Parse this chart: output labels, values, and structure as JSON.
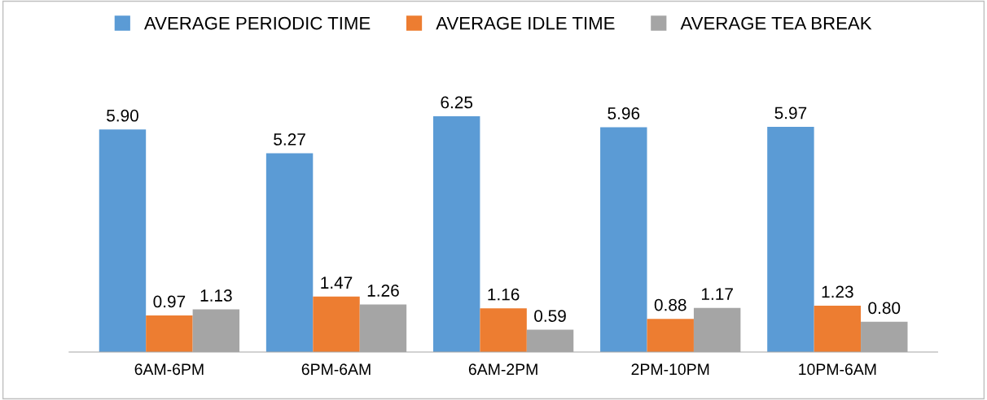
{
  "chart_data": {
    "type": "bar",
    "categories": [
      "6AM-6PM",
      "6PM-6AM",
      "6AM-2PM",
      "2PM-10PM",
      "10PM-6AM"
    ],
    "series": [
      {
        "name": "AVERAGE PERIODIC TIME",
        "color": "#5b9bd5",
        "values": [
          5.9,
          5.27,
          6.25,
          5.96,
          5.97
        ],
        "value_labels": [
          "5.90",
          "5.27",
          "6.25",
          "5.96",
          "5.97"
        ]
      },
      {
        "name": "AVERAGE IDLE TIME",
        "color": "#ed7d31",
        "values": [
          0.97,
          1.47,
          1.16,
          0.88,
          1.23
        ],
        "value_labels": [
          "0.97",
          "1.47",
          "1.16",
          "0.88",
          "1.23"
        ]
      },
      {
        "name": "AVERAGE TEA BREAK",
        "color": "#a5a5a5",
        "values": [
          1.13,
          1.26,
          0.59,
          1.17,
          0.8
        ],
        "value_labels": [
          "1.13",
          "1.26",
          "0.59",
          "1.17",
          "0.80"
        ]
      }
    ],
    "data_labels": true,
    "legend": "top",
    "grid": false
  }
}
